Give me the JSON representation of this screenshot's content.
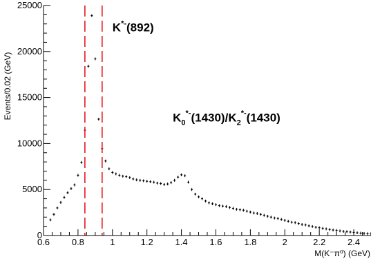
{
  "chart_data": {
    "type": "scatter",
    "title": "",
    "xlabel": "M(K⁻π⁰) (GeV)",
    "ylabel": "Events/0.02 (GeV)",
    "xlim": [
      0.6,
      2.5
    ],
    "ylim": [
      0,
      25000
    ],
    "xticks": [
      "0.6",
      "0.8",
      "1",
      "1.2",
      "1.4",
      "1.6",
      "1.8",
      "2",
      "2.2",
      "2.4"
    ],
    "yticks": [
      "0",
      "5000",
      "10000",
      "15000",
      "20000",
      "25000"
    ],
    "grid": false,
    "legend": "none",
    "bin_width": 0.02,
    "series": [
      {
        "points": [
          [
            0.64,
            1700
          ],
          [
            0.66,
            2300
          ],
          [
            0.68,
            3000
          ],
          [
            0.7,
            3600
          ],
          [
            0.72,
            4150
          ],
          [
            0.74,
            4650
          ],
          [
            0.76,
            5100
          ],
          [
            0.78,
            5500
          ],
          [
            0.8,
            6550
          ],
          [
            0.82,
            7950
          ],
          [
            0.84,
            11450
          ],
          [
            0.86,
            18400
          ],
          [
            0.88,
            23900
          ],
          [
            0.9,
            19200
          ],
          [
            0.92,
            12650
          ],
          [
            0.94,
            9450
          ],
          [
            0.96,
            8100
          ],
          [
            0.98,
            7250
          ],
          [
            1.0,
            6850
          ],
          [
            1.02,
            6700
          ],
          [
            1.04,
            6550
          ],
          [
            1.06,
            6450
          ],
          [
            1.08,
            6400
          ],
          [
            1.1,
            6300
          ],
          [
            1.12,
            6150
          ],
          [
            1.14,
            6050
          ],
          [
            1.16,
            6000
          ],
          [
            1.18,
            5950
          ],
          [
            1.2,
            5900
          ],
          [
            1.22,
            5850
          ],
          [
            1.24,
            5800
          ],
          [
            1.26,
            5700
          ],
          [
            1.28,
            5650
          ],
          [
            1.3,
            5550
          ],
          [
            1.32,
            5600
          ],
          [
            1.34,
            5750
          ],
          [
            1.36,
            6000
          ],
          [
            1.38,
            6350
          ],
          [
            1.4,
            6600
          ],
          [
            1.42,
            6500
          ],
          [
            1.44,
            5800
          ],
          [
            1.46,
            5000
          ],
          [
            1.48,
            4500
          ],
          [
            1.5,
            4200
          ],
          [
            1.52,
            4000
          ],
          [
            1.54,
            3750
          ],
          [
            1.56,
            3550
          ],
          [
            1.58,
            3450
          ],
          [
            1.6,
            3350
          ],
          [
            1.62,
            3250
          ],
          [
            1.64,
            3200
          ],
          [
            1.66,
            3150
          ],
          [
            1.68,
            3050
          ],
          [
            1.7,
            2950
          ],
          [
            1.72,
            2850
          ],
          [
            1.74,
            2800
          ],
          [
            1.76,
            2750
          ],
          [
            1.78,
            2650
          ],
          [
            1.8,
            2550
          ],
          [
            1.82,
            2450
          ],
          [
            1.84,
            2400
          ],
          [
            1.86,
            2300
          ],
          [
            1.88,
            2200
          ],
          [
            1.9,
            2100
          ],
          [
            1.92,
            2000
          ],
          [
            1.94,
            1900
          ],
          [
            1.96,
            1850
          ],
          [
            1.98,
            1750
          ],
          [
            2.0,
            1650
          ],
          [
            2.02,
            1550
          ],
          [
            2.04,
            1450
          ],
          [
            2.06,
            1400
          ],
          [
            2.08,
            1300
          ],
          [
            2.1,
            1200
          ],
          [
            2.12,
            1150
          ],
          [
            2.14,
            1050
          ],
          [
            2.16,
            980
          ],
          [
            2.18,
            900
          ],
          [
            2.2,
            850
          ],
          [
            2.22,
            780
          ],
          [
            2.24,
            720
          ],
          [
            2.26,
            650
          ],
          [
            2.28,
            600
          ],
          [
            2.3,
            550
          ],
          [
            2.32,
            500
          ],
          [
            2.34,
            450
          ],
          [
            2.36,
            420
          ],
          [
            2.38,
            380
          ],
          [
            2.4,
            340
          ],
          [
            2.42,
            300
          ],
          [
            2.44,
            260
          ],
          [
            2.46,
            230
          ],
          [
            2.48,
            200
          ],
          [
            2.5,
            180
          ]
        ]
      }
    ],
    "vlines": [
      0.84,
      0.94
    ],
    "vline_color": "#e0191e",
    "marker_color": "#000000",
    "annotations": [
      {
        "base": "K",
        "sup": "*-",
        "tail": "(892)",
        "x": 1.0,
        "y": 22200
      },
      {
        "base": "K",
        "sub": "0",
        "sup": "*-",
        "mid": "(1430)/K",
        "sub2": "2",
        "sup2": "*-",
        "tail": "(1430)",
        "x": 1.35,
        "y": 12400
      }
    ]
  }
}
